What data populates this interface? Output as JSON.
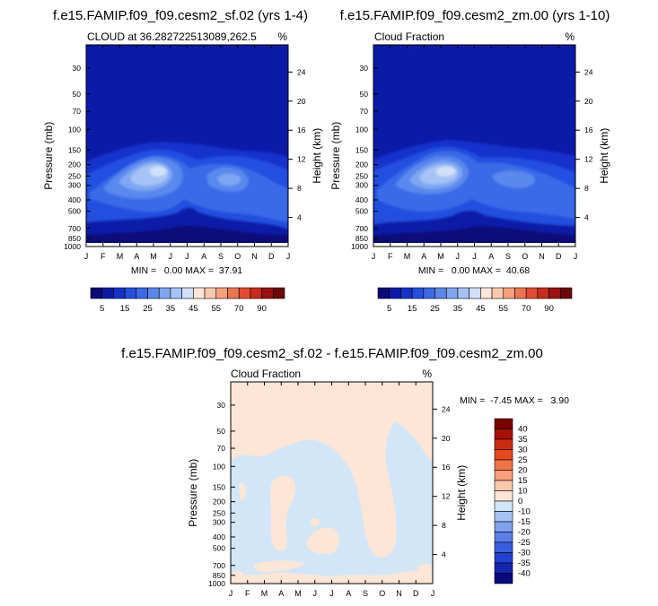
{
  "chart_data": [
    {
      "type": "heatmap",
      "title": "f.e15.FAMIP.f09_f09.cesm2_sf.02 (yrs 1-4)",
      "subtitle_left": "CLOUD at 36.282722513089,262.5",
      "subtitle_right": "%",
      "ylabel": "Pressure (mb)",
      "ylabel_right": "Height (km)",
      "x_ticks": [
        "J",
        "F",
        "M",
        "A",
        "M",
        "J",
        "J",
        "A",
        "S",
        "O",
        "N",
        "D",
        "J"
      ],
      "y_ticks": [
        "30",
        "50",
        "70",
        "100",
        "150",
        "200",
        "250",
        "300",
        "400",
        "500",
        "700",
        "850",
        "1000"
      ],
      "y_ticks_right": [
        "24",
        "20",
        "16",
        "12",
        "8",
        "4"
      ],
      "stats": "MIN =   0.00 MAX =  37.91",
      "min": 0.0,
      "max": 37.91,
      "colorbar_labels": [
        "5",
        "15",
        "25",
        "35",
        "45",
        "55",
        "70",
        "90"
      ]
    },
    {
      "type": "heatmap",
      "title": "f.e15.FAMIP.f09_f09.cesm2_zm.00 (yrs 1-10)",
      "subtitle_left": "Cloud Fraction",
      "subtitle_right": "%",
      "ylabel": "Pressure (mb)",
      "ylabel_right": "Height (km)",
      "x_ticks": [
        "J",
        "F",
        "M",
        "A",
        "M",
        "J",
        "J",
        "A",
        "S",
        "O",
        "N",
        "D",
        "J"
      ],
      "y_ticks": [
        "30",
        "50",
        "70",
        "100",
        "150",
        "200",
        "250",
        "300",
        "400",
        "500",
        "700",
        "850",
        "1000"
      ],
      "y_ticks_right": [
        "24",
        "20",
        "16",
        "12",
        "8",
        "4"
      ],
      "stats": "MIN =   0.00 MAX =  40.68",
      "min": 0.0,
      "max": 40.68,
      "colorbar_labels": [
        "5",
        "15",
        "25",
        "35",
        "45",
        "55",
        "70",
        "90"
      ]
    },
    {
      "type": "heatmap",
      "title": "f.e15.FAMIP.f09_f09.cesm2_sf.02 - f.e15.FAMIP.f09_f09.cesm2_zm.00",
      "subtitle_left": "Cloud Fraction",
      "subtitle_right": "%",
      "ylabel": "Pressure (mb)",
      "ylabel_right": "Height (km)",
      "x_ticks": [
        "J",
        "F",
        "M",
        "A",
        "M",
        "J",
        "J",
        "A",
        "S",
        "O",
        "N",
        "D",
        "J"
      ],
      "y_ticks": [
        "30",
        "50",
        "70",
        "100",
        "150",
        "200",
        "250",
        "300",
        "400",
        "500",
        "700",
        "850",
        "1000"
      ],
      "y_ticks_right": [
        "24",
        "20",
        "16",
        "12",
        "8",
        "4"
      ],
      "stats": "MIN =  -7.45 MAX =   3.90",
      "min": -7.45,
      "max": 3.9,
      "colorbar_labels": [
        "40",
        "35",
        "30",
        "25",
        "20",
        "15",
        "10",
        "0",
        "-10",
        "-15",
        "-20",
        "-25",
        "-30",
        "-35",
        "-40"
      ]
    }
  ],
  "colors": {
    "seq": [
      "#0a0a7a",
      "#0c1aa8",
      "#1432cc",
      "#2350e0",
      "#3a6ae8",
      "#5a88ee",
      "#7ea6f2",
      "#a6c2f6",
      "#d0e0f8",
      "#fde6d8",
      "#fcc8ac",
      "#f8a07c",
      "#f07450",
      "#e44a30",
      "#cc2a1a",
      "#9c1010",
      "#6e0808"
    ],
    "div": [
      "#7a0000",
      "#a81004",
      "#cc2a0c",
      "#e44a1c",
      "#f07448",
      "#f8a07c",
      "#fcc8ac",
      "#fde6d6",
      "#d2e6f8",
      "#a6c2f4",
      "#7ea2ee",
      "#5a80e8",
      "#3a5ee0",
      "#2440d0",
      "#1426b0",
      "#0a0a7e"
    ]
  }
}
